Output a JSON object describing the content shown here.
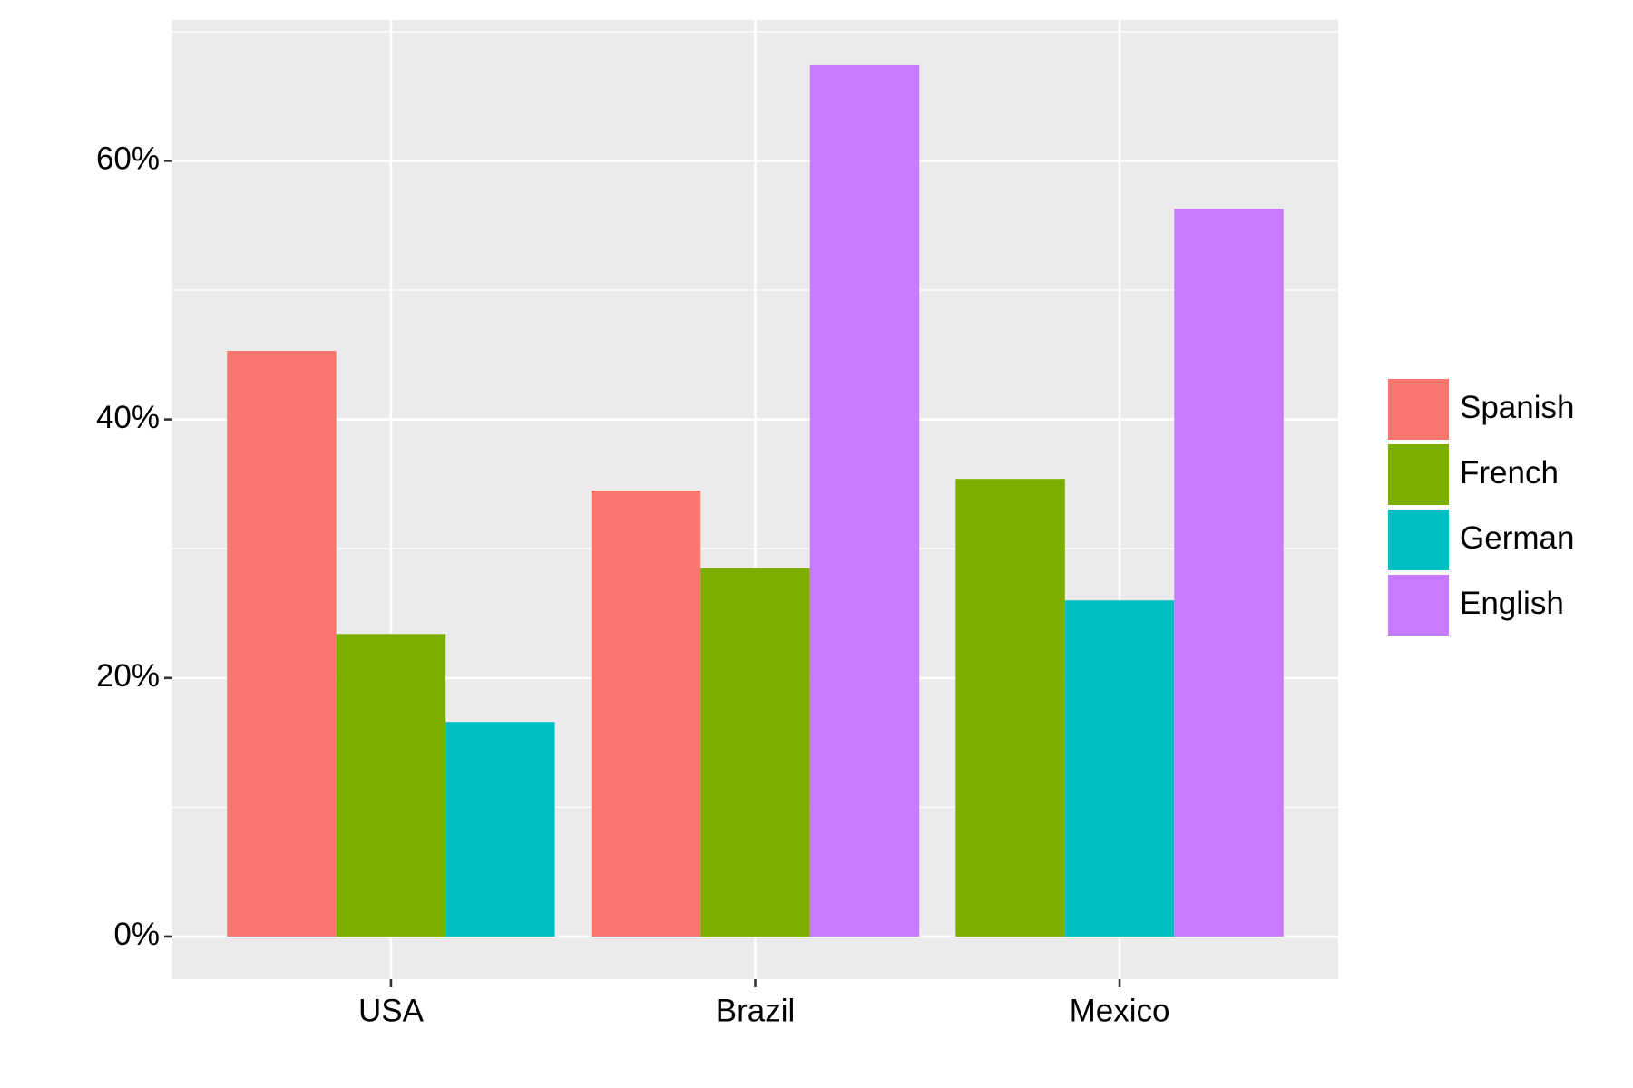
{
  "chart_data": {
    "type": "bar",
    "categories": [
      "USA",
      "Brazil",
      "Mexico"
    ],
    "series": [
      {
        "name": "Spanish",
        "color": "#F8766D",
        "values": [
          45.3,
          34.5,
          null
        ]
      },
      {
        "name": "French",
        "color": "#7CAE00",
        "values": [
          23.4,
          28.5,
          35.4
        ]
      },
      {
        "name": "German",
        "color": "#00BFC4",
        "values": [
          16.6,
          null,
          26.0
        ]
      },
      {
        "name": "English",
        "color": "#C77CFF",
        "values": [
          null,
          67.4,
          56.3
        ]
      }
    ],
    "ylim": [
      -3.3,
      70.9
    ],
    "yticks": [
      {
        "value": 0,
        "label": "0%"
      },
      {
        "value": 20,
        "label": "20%"
      },
      {
        "value": 40,
        "label": "40%"
      },
      {
        "value": 60,
        "label": "60%"
      }
    ],
    "minor_yticks": [
      10,
      30,
      50,
      70
    ],
    "grid": true,
    "legend": "right"
  }
}
